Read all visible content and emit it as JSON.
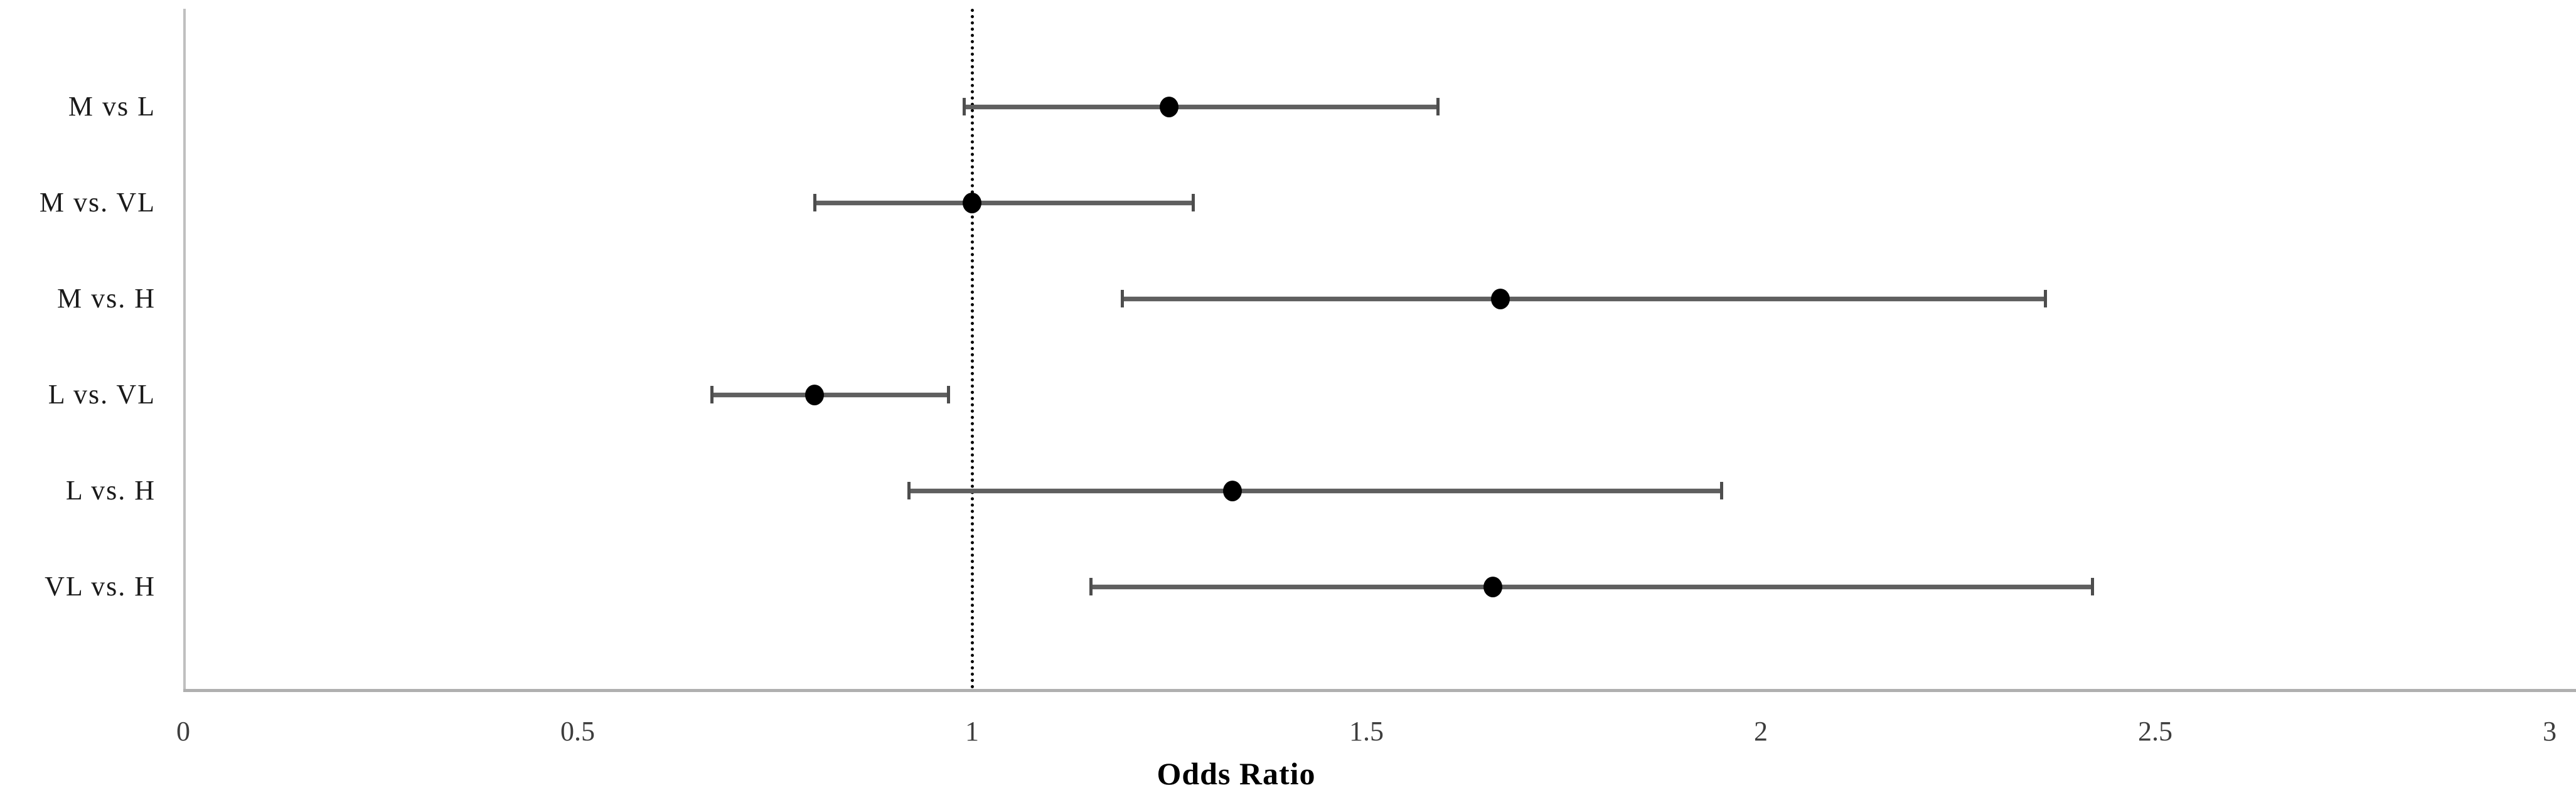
{
  "figure": {
    "background": "#ffffff"
  },
  "chart_data": {
    "type": "scatter",
    "subtype": "forest-plot",
    "title": "",
    "xlabel": "Odds Ratio",
    "ylabel": "",
    "xlim": [
      0,
      3
    ],
    "x_ticks": [
      0,
      0.5,
      1,
      1.5,
      2,
      2.5,
      3
    ],
    "x_tick_labels": [
      "0",
      "0.5",
      "1",
      "1.5",
      "2",
      "2.5",
      "3"
    ],
    "reference_line_x": 1,
    "grid": false,
    "legend": false,
    "categories": [
      "M vs L",
      "M vs. VL",
      "M vs. H",
      "L vs. VL",
      "L vs. H",
      "VL vs. H"
    ],
    "series": [
      {
        "name": "odds-ratio-with-95ci",
        "points": [
          {
            "label": "M vs L",
            "or": 1.25,
            "ci_low": 0.99,
            "ci_high": 1.59
          },
          {
            "label": "M vs. VL",
            "or": 1.0,
            "ci_low": 0.8,
            "ci_high": 1.28
          },
          {
            "label": "M vs. H",
            "or": 1.67,
            "ci_low": 1.19,
            "ci_high": 2.36
          },
          {
            "label": "L vs. VL",
            "or": 0.8,
            "ci_low": 0.67,
            "ci_high": 0.97
          },
          {
            "label": "L vs. H",
            "or": 1.33,
            "ci_low": 0.92,
            "ci_high": 1.95
          },
          {
            "label": "VL vs. H",
            "or": 1.66,
            "ci_low": 1.15,
            "ci_high": 2.42
          }
        ]
      }
    ],
    "colors": {
      "marker": "#000000",
      "error_bar": "#5f5f5f",
      "axis": "#bfbfbf",
      "tick_label": "#3d3d3d",
      "reference_line": "#000000"
    }
  }
}
